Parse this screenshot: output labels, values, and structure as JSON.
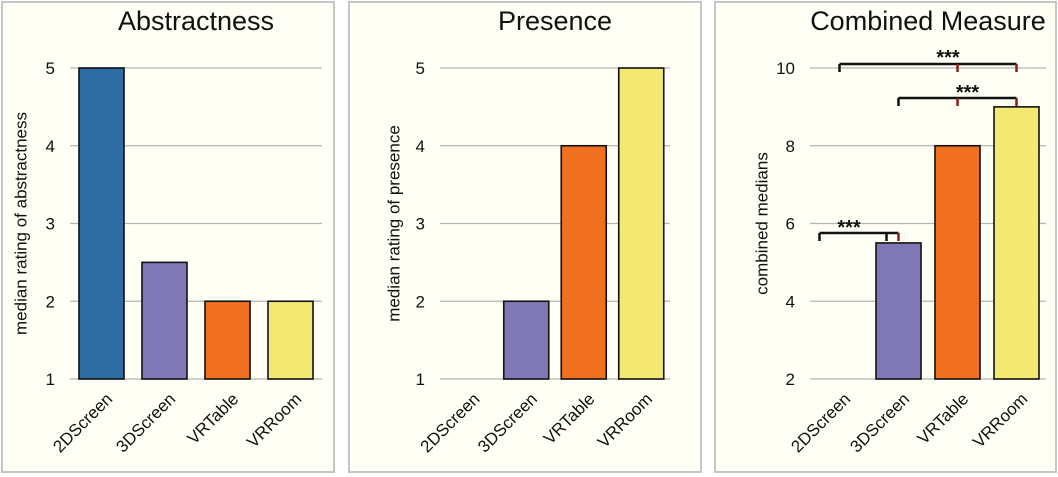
{
  "colors": {
    "background": "#ffffff",
    "panel_fill": "#fffff5",
    "panel_border": "#c6c6c6",
    "gridline": "#b5b5b5",
    "bracket": "#111111",
    "bracket_accent": "#8a1f1f"
  },
  "chart_data": [
    {
      "type": "bar",
      "title": "Abstractness",
      "ylabel": "median rating of abstractness",
      "categories": [
        "2DScreen",
        "3DScreen",
        "VRTable",
        "VRRoom"
      ],
      "values": [
        5,
        2.5,
        2,
        2
      ],
      "bar_colors": [
        "#2e6ca4",
        "#8078b4",
        "#f07020",
        "#f2e872"
      ],
      "ylim": [
        1,
        5
      ],
      "yticks": [
        "1",
        "2",
        "3",
        "4",
        "5"
      ],
      "grid": true,
      "annotations": []
    },
    {
      "type": "bar",
      "title": "Presence",
      "ylabel": "median rating of presence",
      "categories": [
        "2DScreen",
        "3DScreen",
        "VRTable",
        "VRRoom"
      ],
      "values": [
        1,
        2,
        4,
        5
      ],
      "bar_colors": [
        "#2e6ca4",
        "#8078b4",
        "#f07020",
        "#f2e872"
      ],
      "ylim": [
        1,
        5
      ],
      "yticks": [
        "1",
        "2",
        "3",
        "4",
        "5"
      ],
      "grid": true,
      "annotations": []
    },
    {
      "type": "bar",
      "title": "Combined Measure",
      "ylabel": "combined medians",
      "categories": [
        "2DScreen",
        "3DScreen",
        "VRTable",
        "VRRoom"
      ],
      "values": [
        2,
        5.5,
        8,
        9
      ],
      "bar_colors": [
        "#2e6ca4",
        "#8078b4",
        "#f07020",
        "#f2e872"
      ],
      "ylim": [
        2,
        10
      ],
      "yticks": [
        "2",
        "4",
        "6",
        "8",
        "10"
      ],
      "grid": true,
      "annotations": [
        {
          "text": "***",
          "from": "2DScreen",
          "to": [
            "VRTable",
            "VRRoom"
          ]
        },
        {
          "text": "***",
          "from": "3DScreen",
          "to": [
            "VRTable",
            "VRRoom"
          ]
        },
        {
          "text": "***",
          "from": "2DScreen",
          "to": [
            "3DScreen"
          ]
        }
      ]
    }
  ]
}
